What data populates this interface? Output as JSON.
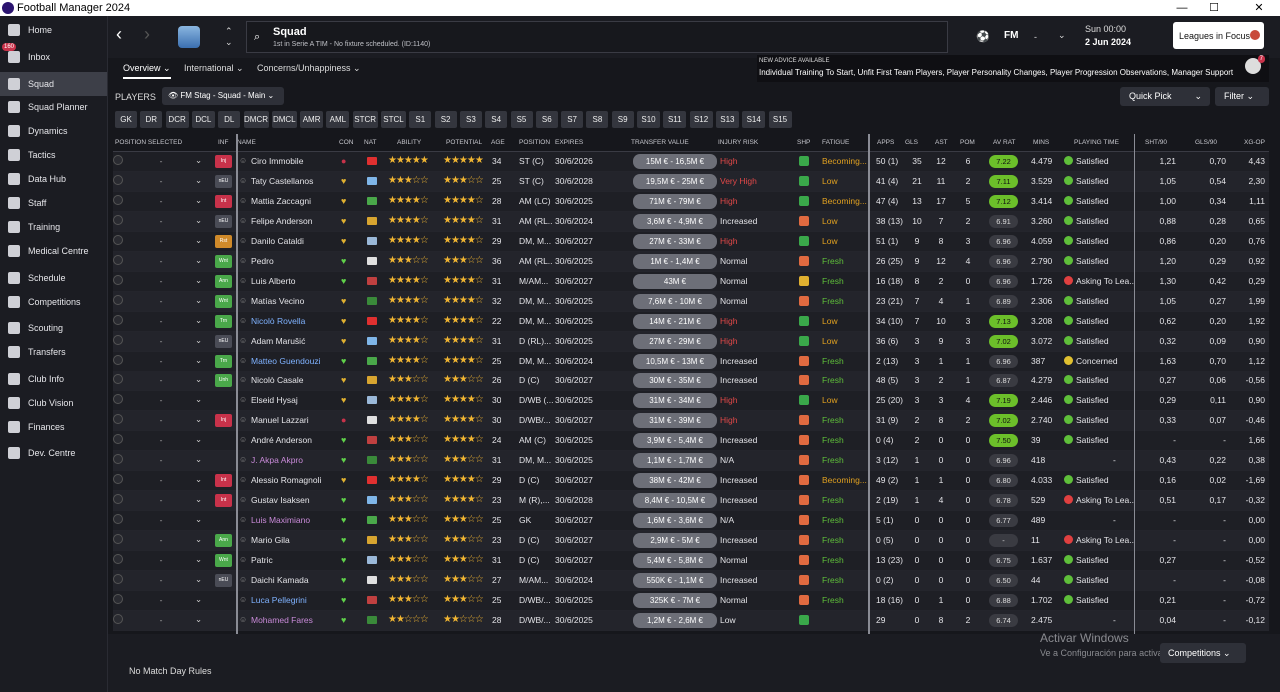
{
  "app_title": "Football Manager 2024",
  "sidebar": [
    {
      "label": "Home",
      "icon": "home-icon"
    },
    {
      "label": "Inbox",
      "icon": "inbox-icon",
      "badge": "160"
    },
    {
      "label": "Squad",
      "icon": "squad-icon",
      "active": true
    },
    {
      "label": "Squad Planner",
      "icon": "planner-icon"
    },
    {
      "label": "Dynamics",
      "icon": "dynamics-icon"
    },
    {
      "label": "Tactics",
      "icon": "tactics-icon"
    },
    {
      "label": "Data Hub",
      "icon": "datahub-icon"
    },
    {
      "label": "Staff",
      "icon": "staff-icon"
    },
    {
      "label": "Training",
      "icon": "training-icon"
    },
    {
      "label": "Medical Centre",
      "icon": "medical-icon"
    },
    {
      "label": "Schedule",
      "icon": "schedule-icon"
    },
    {
      "label": "Competitions",
      "icon": "trophy-icon"
    },
    {
      "label": "Scouting",
      "icon": "scouting-icon"
    },
    {
      "label": "Transfers",
      "icon": "transfers-icon"
    },
    {
      "label": "Club Info",
      "icon": "clubinfo-icon"
    },
    {
      "label": "Club Vision",
      "icon": "vision-icon"
    },
    {
      "label": "Finances",
      "icon": "finances-icon"
    },
    {
      "label": "Dev. Centre",
      "icon": "devcentre-icon"
    }
  ],
  "header": {
    "title": "Squad",
    "subtitle": "1st in Serie A TIM - No fixture scheduled. (ID:1140)",
    "fm": "FM",
    "dash": "-",
    "time": "Sun 00:00",
    "date": "2 Jun 2024",
    "leagues_btn": "Leagues in Focus"
  },
  "subtabs": [
    "Overview",
    "International",
    "Concerns/Unhappiness"
  ],
  "advice": {
    "heading": "NEW ADVICE AVAILABLE",
    "text": "Individual Training To Start, Unfit First Team Players, Player Personality Changes, Player Progression Observations, Manager Support",
    "count": "7"
  },
  "players_label": "PLAYERS",
  "view_select": "FM Stag - Squad - Main",
  "quick_pick": "Quick Pick",
  "filter": "Filter",
  "positions": [
    "GK",
    "DR",
    "DCR",
    "DCL",
    "DL",
    "DMCR",
    "DMCL",
    "AMR",
    "AML",
    "STCR",
    "STCL",
    "S1",
    "S2",
    "S3",
    "S4",
    "S5",
    "S6",
    "S7",
    "S8",
    "S9",
    "S10",
    "S11",
    "S12",
    "S13",
    "S14",
    "S15"
  ],
  "columns": {
    "pos_sel": "POSITION SELECTED",
    "inf": "INF",
    "name": "NAME",
    "con": "CON",
    "nat": "NAT",
    "ability": "ABILITY",
    "potential": "POTENTIAL",
    "age": "AGE",
    "position": "POSITION",
    "expires": "EXPIRES",
    "tv": "TRANSFER VALUE",
    "injury": "INJURY RISK",
    "shp": "SHP",
    "fatigue": "FATIGUE",
    "apps": "APPS",
    "gls": "GLS",
    "ast": "AST",
    "pom": "POM",
    "avrat": "AV RAT",
    "mins": "MINS",
    "pt": "PLAYING TIME",
    "sht": "SHT/90",
    "gls90": "GLS/90",
    "xgop": "XG-OP"
  },
  "players": [
    {
      "inf": "Inj",
      "name": "Ciro Immobile",
      "age": "34",
      "pos": "ST (C)",
      "exp": "30/6/2026",
      "tv": "15M € - 16,5M €",
      "inj": "High",
      "fat": "Becoming...",
      "apps": "50 (1)",
      "gls": "35",
      "ast": "12",
      "pom": "6",
      "rat": "7.22",
      "mins": "4.479",
      "pt": "Satisfied",
      "sht": "1,21",
      "g90": "0,70",
      "xg": "4,43",
      "ab": "★★★★★",
      "po": "★★★★★"
    },
    {
      "inf": "nEU",
      "name": "Taty Castellanos",
      "age": "25",
      "pos": "ST (C)",
      "exp": "30/6/2028",
      "tv": "19,5M € - 25M €",
      "inj": "Very High",
      "fat": "Low",
      "apps": "41 (4)",
      "gls": "21",
      "ast": "11",
      "pom": "2",
      "rat": "7.11",
      "mins": "3.529",
      "pt": "Satisfied",
      "sht": "1,05",
      "g90": "0,54",
      "xg": "2,30",
      "ab": "★★★☆☆",
      "po": "★★★☆☆"
    },
    {
      "inf": "Int",
      "name": "Mattia Zaccagni",
      "age": "28",
      "pos": "AM (LC)",
      "exp": "30/6/2025",
      "tv": "71M € - 79M €",
      "inj": "High",
      "fat": "Becoming...",
      "apps": "47 (4)",
      "gls": "13",
      "ast": "17",
      "pom": "5",
      "rat": "7.12",
      "mins": "3.414",
      "pt": "Satisfied",
      "sht": "1,00",
      "g90": "0,34",
      "xg": "1,11",
      "ab": "★★★★☆",
      "po": "★★★★☆"
    },
    {
      "inf": "nEU",
      "name": "Felipe Anderson",
      "age": "31",
      "pos": "AM (RL...",
      "exp": "30/6/2024",
      "tv": "3,6M € - 4,9M €",
      "inj": "Increased",
      "fat": "Low",
      "apps": "38 (13)",
      "gls": "10",
      "ast": "7",
      "pom": "2",
      "rat": "6.91",
      "mins": "3.260",
      "pt": "Satisfied",
      "sht": "0,88",
      "g90": "0,28",
      "xg": "0,65",
      "ab": "★★★★☆",
      "po": "★★★★☆"
    },
    {
      "inf": "Rst",
      "name": "Danilo Cataldi",
      "age": "29",
      "pos": "DM, M...",
      "exp": "30/6/2027",
      "tv": "27M € - 33M €",
      "inj": "High",
      "fat": "Low",
      "apps": "51 (1)",
      "gls": "9",
      "ast": "8",
      "pom": "3",
      "rat": "6.96",
      "mins": "4.059",
      "pt": "Satisfied",
      "sht": "0,86",
      "g90": "0,20",
      "xg": "0,76",
      "ab": "★★★★☆",
      "po": "★★★★☆"
    },
    {
      "inf": "Wnt",
      "name": "Pedro",
      "age": "36",
      "pos": "AM (RL...",
      "exp": "30/6/2025",
      "tv": "1M € - 1,4M €",
      "inj": "Normal",
      "fat": "Fresh",
      "apps": "26 (25)",
      "gls": "9",
      "ast": "12",
      "pom": "4",
      "rat": "6.96",
      "mins": "2.790",
      "pt": "Satisfied",
      "sht": "1,20",
      "g90": "0,29",
      "xg": "0,92",
      "ab": "★★★☆☆",
      "po": "★★★☆☆"
    },
    {
      "inf": "Ann",
      "name": "Luis Alberto",
      "age": "31",
      "pos": "M/AM...",
      "exp": "30/6/2027",
      "tv": "43M €",
      "inj": "Normal",
      "fat": "Fresh",
      "apps": "16 (18)",
      "gls": "8",
      "ast": "2",
      "pom": "0",
      "rat": "6.96",
      "mins": "1.726",
      "pt": "Asking To Lea...",
      "sht": "1,30",
      "g90": "0,42",
      "xg": "0,29",
      "ab": "★★★★☆",
      "po": "★★★★☆"
    },
    {
      "inf": "Wnt",
      "name": "Matías Vecino",
      "age": "32",
      "pos": "DM, M...",
      "exp": "30/6/2025",
      "tv": "7,6M € - 10M €",
      "inj": "Normal",
      "fat": "Fresh",
      "apps": "23 (21)",
      "gls": "7",
      "ast": "4",
      "pom": "1",
      "rat": "6.89",
      "mins": "2.306",
      "pt": "Satisfied",
      "sht": "1,05",
      "g90": "0,27",
      "xg": "1,99",
      "ab": "★★★★☆",
      "po": "★★★★☆"
    },
    {
      "inf": "Trn",
      "name": "Nicolò Rovella",
      "age": "22",
      "pos": "DM, M...",
      "exp": "30/6/2025",
      "tv": "14M € - 21M €",
      "inj": "High",
      "fat": "Low",
      "apps": "34 (10)",
      "gls": "7",
      "ast": "10",
      "pom": "3",
      "rat": "7.13",
      "mins": "3.208",
      "pt": "Satisfied",
      "sht": "0,62",
      "g90": "0,20",
      "xg": "1,92",
      "ab": "★★★★☆",
      "po": "★★★★☆"
    },
    {
      "inf": "nEU",
      "name": "Adam Marušić",
      "age": "31",
      "pos": "D (RL)...",
      "exp": "30/6/2025",
      "tv": "27M € - 29M €",
      "inj": "High",
      "fat": "Low",
      "apps": "36 (6)",
      "gls": "3",
      "ast": "9",
      "pom": "3",
      "rat": "7.02",
      "mins": "3.072",
      "pt": "Satisfied",
      "sht": "0,32",
      "g90": "0,09",
      "xg": "0,90",
      "ab": "★★★★☆",
      "po": "★★★★☆"
    },
    {
      "inf": "Trn",
      "name": "Matteo Guendouzi",
      "age": "25",
      "pos": "DM, M...",
      "exp": "30/6/2024",
      "tv": "10,5M € - 13M €",
      "inj": "Increased",
      "fat": "Fresh",
      "apps": "2 (13)",
      "gls": "3",
      "ast": "1",
      "pom": "1",
      "rat": "6.96",
      "mins": "387",
      "pt": "Concerned",
      "sht": "1,63",
      "g90": "0,70",
      "xg": "1,12",
      "ab": "★★★★☆",
      "po": "★★★★☆"
    },
    {
      "inf": "Unh",
      "name": "Nicolò Casale",
      "age": "26",
      "pos": "D (C)",
      "exp": "30/6/2027",
      "tv": "30M € - 35M €",
      "inj": "Increased",
      "fat": "Fresh",
      "apps": "48 (5)",
      "gls": "3",
      "ast": "2",
      "pom": "1",
      "rat": "6.87",
      "mins": "4.279",
      "pt": "Satisfied",
      "sht": "0,27",
      "g90": "0,06",
      "xg": "-0,56",
      "ab": "★★★☆☆",
      "po": "★★★☆☆"
    },
    {
      "inf": "",
      "name": "Elseid Hysaj",
      "age": "30",
      "pos": "D/WB (...",
      "exp": "30/6/2025",
      "tv": "31M € - 34M €",
      "inj": "High",
      "fat": "Low",
      "apps": "25 (20)",
      "gls": "3",
      "ast": "3",
      "pom": "4",
      "rat": "7.19",
      "mins": "2.446",
      "pt": "Satisfied",
      "sht": "0,29",
      "g90": "0,11",
      "xg": "0,90",
      "ab": "★★★★☆",
      "po": "★★★★☆"
    },
    {
      "inf": "Inj",
      "name": "Manuel Lazzari",
      "age": "30",
      "pos": "D/WB/...",
      "exp": "30/6/2027",
      "tv": "31M € - 39M €",
      "inj": "High",
      "fat": "Fresh",
      "apps": "31 (9)",
      "gls": "2",
      "ast": "8",
      "pom": "2",
      "rat": "7.02",
      "mins": "2.740",
      "pt": "Satisfied",
      "sht": "0,33",
      "g90": "0,07",
      "xg": "-0,46",
      "ab": "★★★★☆",
      "po": "★★★★☆"
    },
    {
      "inf": "",
      "name": "André Anderson",
      "age": "24",
      "pos": "AM (C)",
      "exp": "30/6/2025",
      "tv": "3,9M € - 5,4M €",
      "inj": "Increased",
      "fat": "Fresh",
      "apps": "0 (4)",
      "gls": "2",
      "ast": "0",
      "pom": "0",
      "rat": "7.50",
      "mins": "39",
      "pt": "Satisfied",
      "sht": "-",
      "g90": "-",
      "xg": "1,66",
      "ab": "★★★☆☆",
      "po": "★★★★☆"
    },
    {
      "inf": "",
      "name": "J. Akpa Akpro",
      "age": "31",
      "pos": "DM, M...",
      "exp": "30/6/2025",
      "tv": "1,1M € - 1,7M €",
      "inj": "N/A",
      "fat": "Fresh",
      "apps": "3 (12)",
      "gls": "1",
      "ast": "0",
      "pom": "0",
      "rat": "6.96",
      "mins": "418",
      "pt": "-",
      "sht": "0,43",
      "g90": "0,22",
      "xg": "0,38",
      "ab": "★★★☆☆",
      "po": "★★★☆☆"
    },
    {
      "inf": "Int",
      "name": "Alessio Romagnoli",
      "age": "29",
      "pos": "D (C)",
      "exp": "30/6/2027",
      "tv": "38M € - 42M €",
      "inj": "Increased",
      "fat": "Becoming...",
      "apps": "49 (2)",
      "gls": "1",
      "ast": "1",
      "pom": "0",
      "rat": "6.80",
      "mins": "4.033",
      "pt": "Satisfied",
      "sht": "0,16",
      "g90": "0,02",
      "xg": "-1,69",
      "ab": "★★★★☆",
      "po": "★★★★☆"
    },
    {
      "inf": "Int",
      "name": "Gustav Isaksen",
      "age": "23",
      "pos": "M (R),...",
      "exp": "30/6/2028",
      "tv": "8,4M € - 10,5M €",
      "inj": "Increased",
      "fat": "Fresh",
      "apps": "2 (19)",
      "gls": "1",
      "ast": "4",
      "pom": "0",
      "rat": "6.78",
      "mins": "529",
      "pt": "Asking To Lea...",
      "sht": "0,51",
      "g90": "0,17",
      "xg": "-0,32",
      "ab": "★★★☆☆",
      "po": "★★★★☆"
    },
    {
      "inf": "",
      "name": "Luis Maximiano",
      "age": "25",
      "pos": "GK",
      "exp": "30/6/2027",
      "tv": "1,6M € - 3,6M €",
      "inj": "N/A",
      "fat": "Fresh",
      "apps": "5 (1)",
      "gls": "0",
      "ast": "0",
      "pom": "0",
      "rat": "6.77",
      "mins": "489",
      "pt": "-",
      "sht": "-",
      "g90": "-",
      "xg": "0,00",
      "ab": "★★★☆☆",
      "po": "★★★☆☆"
    },
    {
      "inf": "Ann",
      "name": "Mario Gila",
      "age": "23",
      "pos": "D (C)",
      "exp": "30/6/2027",
      "tv": "2,9M € - 5M €",
      "inj": "Increased",
      "fat": "Fresh",
      "apps": "0 (5)",
      "gls": "0",
      "ast": "0",
      "pom": "0",
      "rat": "-",
      "mins": "11",
      "pt": "Asking To Lea...",
      "sht": "-",
      "g90": "-",
      "xg": "0,00",
      "ab": "★★★☆☆",
      "po": "★★★☆☆"
    },
    {
      "inf": "Wnt",
      "name": "Patric",
      "age": "31",
      "pos": "D (C)",
      "exp": "30/6/2027",
      "tv": "5,4M € - 5,8M €",
      "inj": "Normal",
      "fat": "Fresh",
      "apps": "13 (23)",
      "gls": "0",
      "ast": "0",
      "pom": "0",
      "rat": "6.75",
      "mins": "1.637",
      "pt": "Satisfied",
      "sht": "0,27",
      "g90": "-",
      "xg": "-0,52",
      "ab": "★★★☆☆",
      "po": "★★★☆☆"
    },
    {
      "inf": "nEU",
      "name": "Daichi Kamada",
      "age": "27",
      "pos": "M/AM...",
      "exp": "30/6/2024",
      "tv": "550K € - 1,1M €",
      "inj": "Increased",
      "fat": "Fresh",
      "apps": "0 (2)",
      "gls": "0",
      "ast": "0",
      "pom": "0",
      "rat": "6.50",
      "mins": "44",
      "pt": "Satisfied",
      "sht": "-",
      "g90": "-",
      "xg": "-0,08",
      "ab": "★★★☆☆",
      "po": "★★★☆☆"
    },
    {
      "inf": "",
      "name": "Luca Pellegrini",
      "age": "25",
      "pos": "D/WB/...",
      "exp": "30/6/2025",
      "tv": "325K € - 7M €",
      "inj": "Normal",
      "fat": "Fresh",
      "apps": "18 (16)",
      "gls": "0",
      "ast": "1",
      "pom": "0",
      "rat": "6.88",
      "mins": "1.702",
      "pt": "Satisfied",
      "sht": "0,21",
      "g90": "-",
      "xg": "-0,72",
      "ab": "★★★☆☆",
      "po": "★★★☆☆"
    },
    {
      "inf": "",
      "name": "Mohamed Fares",
      "age": "28",
      "pos": "D/WB/...",
      "exp": "30/6/2025",
      "tv": "1,2M € - 2,6M €",
      "inj": "Low",
      "fat": "",
      "apps": "29",
      "gls": "0",
      "ast": "8",
      "pom": "2",
      "rat": "6.74",
      "mins": "2.475",
      "pt": "-",
      "sht": "0,04",
      "g90": "-",
      "xg": "-0,12",
      "ab": "★★☆☆☆",
      "po": "★★☆☆☆"
    }
  ],
  "footer": {
    "no_match_rules": "No Match Day Rules",
    "competitions": "Competitions"
  },
  "watermark": {
    "line1": "Activar Windows",
    "line2": "Ve a Configuración para activar Windows."
  },
  "colors": {
    "high": "#e04848",
    "low": "#e0a020",
    "fresh": "#5fbf3a",
    "rating_good": "#6cbf2a"
  }
}
